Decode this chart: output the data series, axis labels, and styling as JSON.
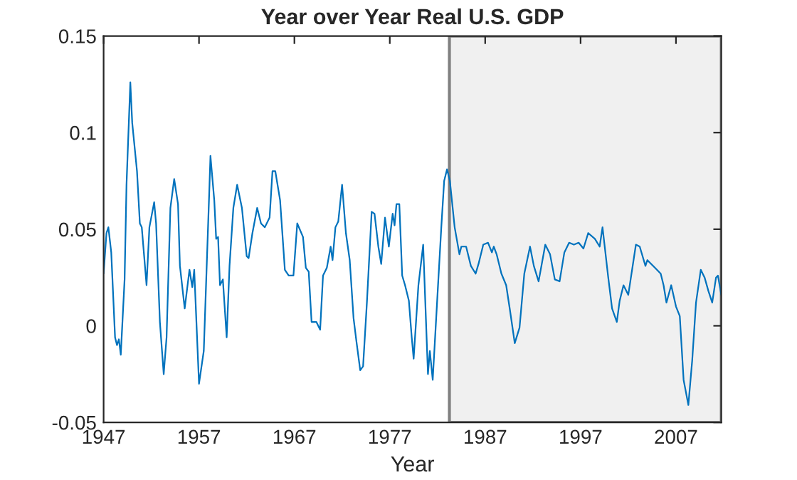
{
  "chart_data": {
    "type": "line",
    "title": "Year over Year Real U.S. GDP",
    "xlabel": "Year",
    "xlim": [
      1947,
      2011.75
    ],
    "ylim": [
      -0.05,
      0.15
    ],
    "xticks": [
      1947,
      1957,
      1967,
      1977,
      1987,
      1997,
      2007
    ],
    "yticks": [
      -0.05,
      0,
      0.05,
      0.1,
      0.15
    ],
    "grid": false,
    "legend": false,
    "bands": [
      {
        "axis": "x",
        "from": 1983.25,
        "to": 2011.75,
        "color": "#f0f0f0"
      }
    ],
    "series": [
      {
        "color": "#0072bd",
        "x": [
          1947,
          1947.3,
          1947.5,
          1947.8,
          1948.2,
          1948.4,
          1948.6,
          1948.8,
          1949.2,
          1949.4,
          1949.8,
          1950,
          1950.5,
          1950.8,
          1951,
          1951.5,
          1951.8,
          1952.3,
          1952.5,
          1952.9,
          1953.3,
          1953.6,
          1954,
          1954.4,
          1954.8,
          1955,
          1955.5,
          1956,
          1956.3,
          1956.5,
          1957,
          1957.5,
          1958.1,
          1958.2,
          1958.6,
          1958.8,
          1959,
          1959.2,
          1959.5,
          1959.9,
          1960.2,
          1960.6,
          1961,
          1961.5,
          1962,
          1962.2,
          1962.6,
          1963.1,
          1963.5,
          1963.9,
          1964.4,
          1964.7,
          1965,
          1965.5,
          1966,
          1966.4,
          1966.9,
          1967.3,
          1967.9,
          1968.2,
          1968.5,
          1968.8,
          1969.3,
          1969.7,
          1970,
          1970.4,
          1970.8,
          1971,
          1971.3,
          1971.6,
          1972,
          1972.4,
          1972.8,
          1973.2,
          1973.5,
          1973.9,
          1974.2,
          1974.6,
          1975.1,
          1975.4,
          1975.8,
          1976.1,
          1976.5,
          1976.9,
          1977.3,
          1977.5,
          1977.7,
          1978,
          1978.3,
          1978.6,
          1979,
          1979.3,
          1979.5,
          1980,
          1980.5,
          1981,
          1981.2,
          1981.5,
          1982,
          1982.4,
          1982.7,
          1983,
          1983.3,
          1983.8,
          1984.3,
          1984.5,
          1985,
          1985.5,
          1986,
          1986.3,
          1986.8,
          1987.3,
          1987.7,
          1987.9,
          1988.2,
          1988.7,
          1989.2,
          1989.6,
          1990.1,
          1990.6,
          1991.1,
          1991.7,
          1992.1,
          1992.6,
          1993.3,
          1993.8,
          1994.3,
          1994.8,
          1995.3,
          1995.8,
          1996.3,
          1996.8,
          1997.3,
          1997.8,
          1998.5,
          1999,
          1999.3,
          1999.9,
          2000.3,
          2000.8,
          2001.1,
          2001.5,
          2002,
          2002.8,
          2003.2,
          2003.8,
          2004,
          2004.8,
          2005.4,
          2005.7,
          2006,
          2006.5,
          2007,
          2007.4,
          2007.8,
          2008.3,
          2008.7,
          2009.1,
          2009.6,
          2010,
          2010.4,
          2010.8,
          2011.2,
          2011.4,
          2011.75
        ],
        "values": [
          0.027,
          0.048,
          0.051,
          0.038,
          -0.006,
          -0.01,
          -0.007,
          -0.015,
          0.024,
          0.073,
          0.126,
          0.105,
          0.08,
          0.053,
          0.051,
          0.021,
          0.051,
          0.064,
          0.053,
          0.002,
          -0.025,
          -0.006,
          0.061,
          0.076,
          0.063,
          0.031,
          0.009,
          0.029,
          0.02,
          0.029,
          -0.03,
          -0.013,
          0.073,
          0.088,
          0.065,
          0.045,
          0.046,
          0.021,
          0.024,
          -0.006,
          0.031,
          0.061,
          0.073,
          0.061,
          0.036,
          0.035,
          0.048,
          0.061,
          0.053,
          0.051,
          0.056,
          0.08,
          0.08,
          0.065,
          0.029,
          0.026,
          0.026,
          0.053,
          0.046,
          0.03,
          0.028,
          0.002,
          0.002,
          -0.002,
          0.026,
          0.03,
          0.041,
          0.034,
          0.051,
          0.054,
          0.073,
          0.048,
          0.034,
          0.004,
          -0.008,
          -0.023,
          -0.021,
          0.012,
          0.059,
          0.058,
          0.041,
          0.032,
          0.056,
          0.041,
          0.058,
          0.052,
          0.063,
          0.063,
          0.026,
          0.021,
          0.013,
          -0.006,
          -0.017,
          0.021,
          0.042,
          -0.025,
          -0.013,
          -0.028,
          0.016,
          0.051,
          0.075,
          0.081,
          0.075,
          0.051,
          0.037,
          0.041,
          0.041,
          0.031,
          0.027,
          0.032,
          0.042,
          0.043,
          0.038,
          0.041,
          0.037,
          0.027,
          0.021,
          0.008,
          -0.009,
          -0.001,
          0.027,
          0.041,
          0.031,
          0.023,
          0.042,
          0.037,
          0.024,
          0.023,
          0.038,
          0.043,
          0.042,
          0.043,
          0.04,
          0.048,
          0.045,
          0.041,
          0.051,
          0.025,
          0.009,
          0.002,
          0.013,
          0.021,
          0.016,
          0.042,
          0.041,
          0.031,
          0.034,
          0.03,
          0.027,
          0.021,
          0.012,
          0.021,
          0.01,
          0.005,
          -0.028,
          -0.041,
          -0.018,
          0.012,
          0.029,
          0.025,
          0.018,
          0.012,
          0.025,
          0.026,
          0.016
        ]
      }
    ]
  }
}
